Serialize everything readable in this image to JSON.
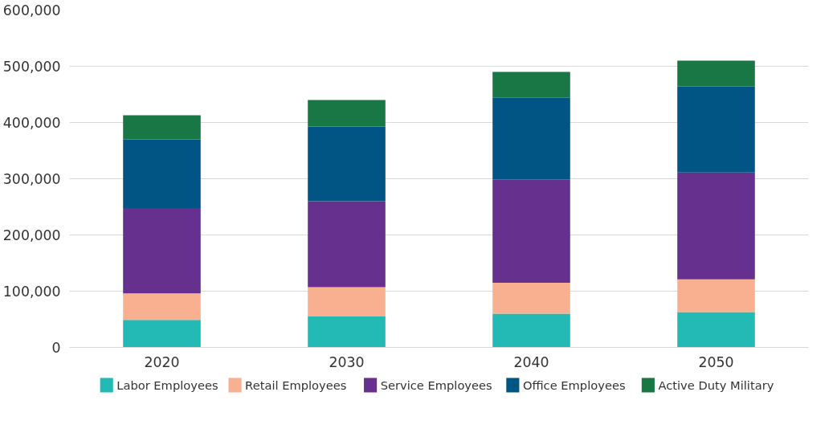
{
  "chart_data": {
    "type": "bar",
    "stacked": true,
    "categories": [
      "2020",
      "2030",
      "2040",
      "2050"
    ],
    "series": [
      {
        "name": "Labor Employees",
        "color": "#23bab5",
        "values": [
          49000,
          55000,
          60000,
          63000
        ]
      },
      {
        "name": "Retail Employees",
        "color": "#f9b090",
        "values": [
          47000,
          52000,
          55000,
          58000
        ]
      },
      {
        "name": "Service Employees",
        "color": "#66308e",
        "values": [
          152000,
          153000,
          184000,
          190000
        ]
      },
      {
        "name": "Office Employees",
        "color": "#005584",
        "values": [
          122000,
          133000,
          145000,
          153000
        ]
      },
      {
        "name": "Active Duty Military",
        "color": "#187745",
        "values": [
          43000,
          47000,
          46000,
          46000
        ]
      }
    ],
    "ylim": [
      0,
      600000
    ],
    "yticks": [
      {
        "value": 0,
        "label": "0"
      },
      {
        "value": 100000,
        "label": "100,000"
      },
      {
        "value": 200000,
        "label": "200,000"
      },
      {
        "value": 300000,
        "label": "300,000"
      },
      {
        "value": 400000,
        "label": "400,000"
      },
      {
        "value": 500000,
        "label": "500,000"
      },
      {
        "value": 600000,
        "label": "600,000"
      }
    ],
    "grid": "y",
    "legend": "bottom"
  }
}
